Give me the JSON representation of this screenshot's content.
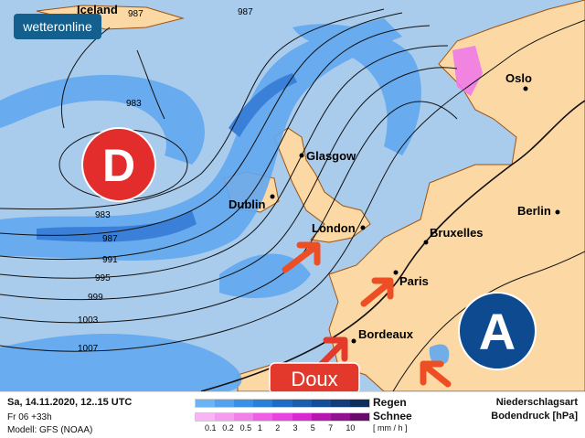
{
  "brand": {
    "logo_text": "wetteronline",
    "logo_bg": "#135f8d"
  },
  "map": {
    "colors": {
      "sea": "#a9cbec",
      "land": "#fcd9a4",
      "border": "#a0520f",
      "rain_light": "#62a8f0",
      "rain_dark": "#2f78d8",
      "snow": "#f07ae8",
      "low": "#e32c2c",
      "high": "#0d4a8f",
      "arrow": "#ee4e24"
    },
    "cities": [
      {
        "name": "Iceland"
      },
      {
        "name": "Oslo"
      },
      {
        "name": "Glasgow"
      },
      {
        "name": "Dublin"
      },
      {
        "name": "London"
      },
      {
        "name": "Bruxelles"
      },
      {
        "name": "Berlin"
      },
      {
        "name": "Paris"
      },
      {
        "name": "Bordeaux"
      }
    ],
    "isobar_labels": [
      "987",
      "987",
      "983",
      "983",
      "987",
      "991",
      "995",
      "999",
      "1003",
      "1007"
    ],
    "low_label": "D",
    "high_label": "A",
    "callout": "Doux"
  },
  "footer": {
    "datetime": "Sa, 14.11.2020, 12..15 UTC",
    "run": "Fr 06 +33h",
    "model": "Modell: GFS (NOAA)",
    "rain_label": "Regen",
    "snow_label": "Schnee",
    "unit": "[ mm / h ]",
    "ticks": [
      "0.1",
      "0.2",
      "0.5",
      "1",
      "2",
      "3",
      "5",
      "7",
      "10"
    ],
    "rain_colors": [
      "#6ab4f6",
      "#52a2ef",
      "#3a8fe6",
      "#2a7fd9",
      "#1f6cc4",
      "#1a5ead",
      "#144e98",
      "#123f7c",
      "#0d2f5c"
    ],
    "snow_colors": [
      "#f8b4f4",
      "#f59cf0",
      "#f27fea",
      "#ee5fe5",
      "#e944df",
      "#d82ad0",
      "#b816b0",
      "#931090",
      "#6a0a6a"
    ],
    "title1": "Niederschlagsart",
    "title2": "Bodendruck [hPa]"
  }
}
